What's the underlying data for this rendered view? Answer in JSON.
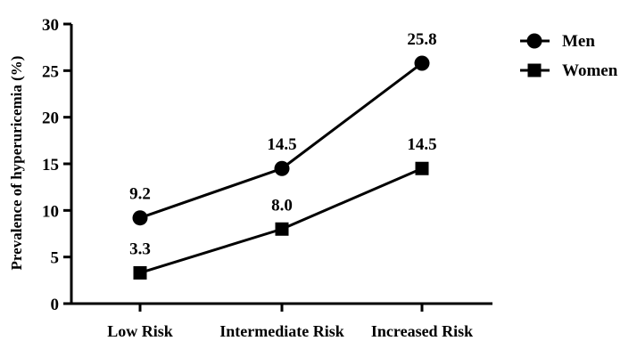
{
  "chart_data": {
    "type": "line",
    "title": "",
    "xlabel": "",
    "ylabel": "Prevalence of hyperuricemia (%)",
    "categories": [
      "Low Risk",
      "Intermediate Risk",
      "Increased Risk"
    ],
    "ylim": [
      0,
      30
    ],
    "yticks": [
      0,
      5,
      10,
      15,
      20,
      25,
      30
    ],
    "ytick_labels": [
      "0",
      "5",
      "10",
      "15",
      "20",
      "25",
      "30"
    ],
    "grid": false,
    "legend_position": "top-right",
    "series": [
      {
        "name": "Men",
        "marker": "circle",
        "values": [
          9.2,
          14.5,
          25.8
        ],
        "data_labels": [
          "9.2",
          "14.5",
          "25.8"
        ],
        "color": "#000000"
      },
      {
        "name": "Women",
        "marker": "square",
        "values": [
          3.3,
          8.0,
          14.5
        ],
        "data_labels": [
          "3.3",
          "8.0",
          "14.5"
        ],
        "color": "#000000"
      }
    ]
  }
}
